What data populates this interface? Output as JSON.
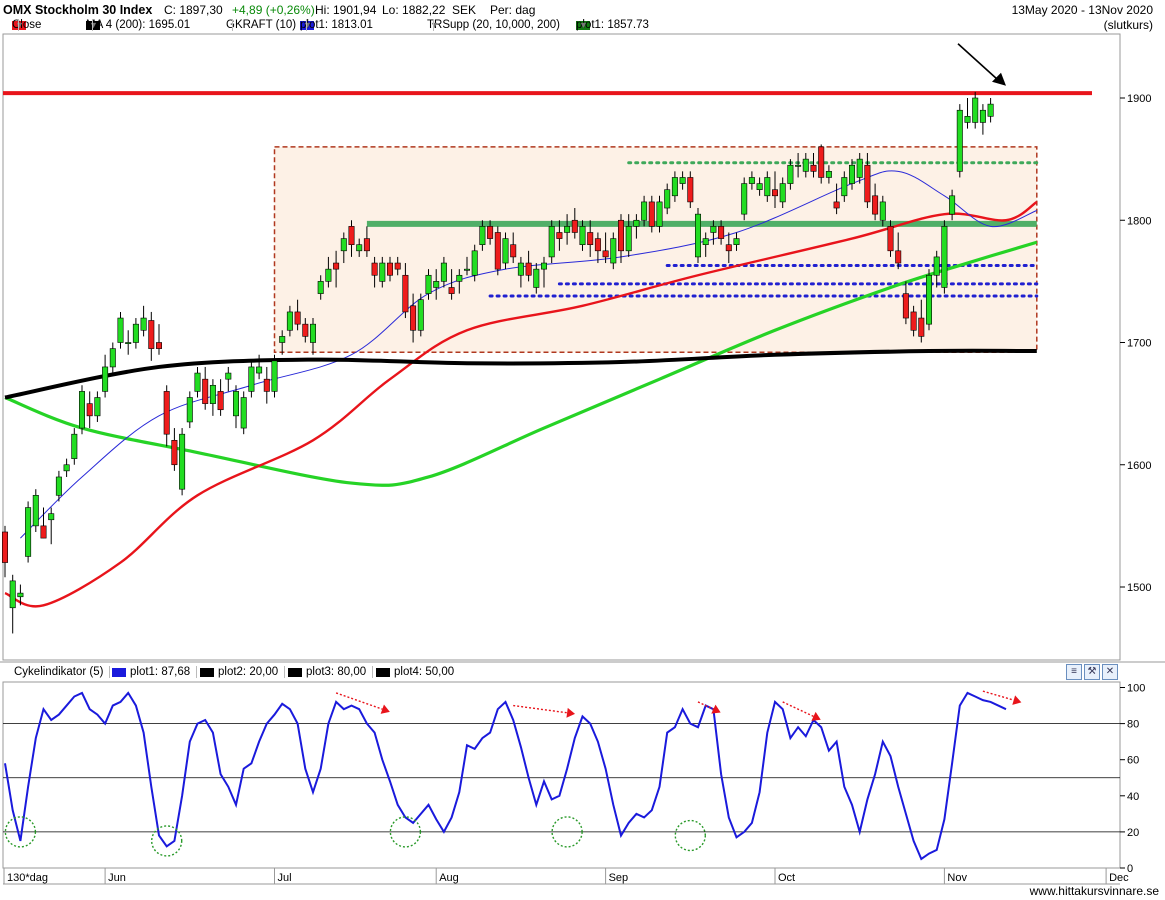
{
  "header": {
    "title": "OMX Stockholm 30 Index",
    "close": "C: 1897,30",
    "change": "+4,89 (+0,26%)",
    "high": "Hi: 1901,94",
    "low": "Lo: 1882,22",
    "currency": "SEK",
    "period": "Per: dag",
    "daterange": "13May 2020 - 13Nov 2020",
    "mode": "(slutkurs)"
  },
  "legend": [
    {
      "label": "Close",
      "color": "#e8141b",
      "dropdown": true
    },
    {
      "label": "MA 4 (200): 1695.01",
      "color": "#000000",
      "dropdown": true
    },
    {
      "label": "GKRAFT (10)",
      "color": "",
      "dropdown": false
    },
    {
      "label": "plot1: 1813.01",
      "color": "#1a1adc",
      "dropdown": true
    },
    {
      "label": "TRSupp (20, 10,000, 200)",
      "color": "",
      "dropdown": true
    },
    {
      "label": "plot1: 1857.73",
      "color": "#127a12",
      "dropdown": true
    }
  ],
  "indicator": {
    "name": "Cykelindikator (5)",
    "legend": [
      {
        "label": "plot1: 87,68",
        "color": "#1a1adc"
      },
      {
        "label": "plot2: 20,00",
        "color": "#000000"
      },
      {
        "label": "plot3: 80,00",
        "color": "#000000"
      },
      {
        "label": "plot4: 50,00",
        "color": "#000000"
      }
    ],
    "toolbar_icons": [
      "list-icon",
      "wrench-icon",
      "close-icon"
    ]
  },
  "footer": "www.hittakursvinnare.se",
  "chart_data": [
    {
      "type": "candlestick",
      "name": "price",
      "y_ticks": [
        1500,
        1600,
        1700,
        1800,
        1900
      ],
      "ylim": [
        1440,
        1945
      ],
      "x_labels": [
        {
          "label": "130*dag",
          "index": -1
        },
        {
          "label": "Jun",
          "index": 13
        },
        {
          "label": "Jul",
          "index": 35
        },
        {
          "label": "Aug",
          "index": 56
        },
        {
          "label": "Sep",
          "index": 78
        },
        {
          "label": "Oct",
          "index": 100
        },
        {
          "label": "Nov",
          "index": 122
        },
        {
          "label": "Dec",
          "index": 143
        }
      ],
      "candles_ohlc": [
        [
          1545,
          1550,
          1508,
          1520
        ],
        [
          1483,
          1510,
          1462,
          1505
        ],
        [
          1492,
          1502,
          1485,
          1495
        ],
        [
          1525,
          1570,
          1520,
          1565
        ],
        [
          1550,
          1580,
          1545,
          1575
        ],
        [
          1550,
          1565,
          1540,
          1540
        ],
        [
          1555,
          1565,
          1535,
          1560
        ],
        [
          1575,
          1595,
          1570,
          1590
        ],
        [
          1595,
          1605,
          1590,
          1600
        ],
        [
          1605,
          1630,
          1600,
          1625
        ],
        [
          1630,
          1665,
          1625,
          1660
        ],
        [
          1650,
          1660,
          1630,
          1640
        ],
        [
          1640,
          1660,
          1635,
          1655
        ],
        [
          1660,
          1690,
          1655,
          1680
        ],
        [
          1680,
          1700,
          1675,
          1695
        ],
        [
          1700,
          1725,
          1695,
          1720
        ],
        [
          1700,
          1710,
          1690,
          1700
        ],
        [
          1700,
          1720,
          1695,
          1715
        ],
        [
          1710,
          1730,
          1705,
          1720
        ],
        [
          1718,
          1725,
          1685,
          1695
        ],
        [
          1700,
          1715,
          1690,
          1695
        ],
        [
          1660,
          1665,
          1615,
          1625
        ],
        [
          1620,
          1630,
          1595,
          1600
        ],
        [
          1580,
          1630,
          1575,
          1625
        ],
        [
          1635,
          1660,
          1630,
          1655
        ],
        [
          1660,
          1680,
          1655,
          1675
        ],
        [
          1670,
          1680,
          1645,
          1650
        ],
        [
          1650,
          1670,
          1640,
          1665
        ],
        [
          1660,
          1670,
          1640,
          1645
        ],
        [
          1670,
          1680,
          1660,
          1675
        ],
        [
          1640,
          1665,
          1630,
          1660
        ],
        [
          1630,
          1660,
          1625,
          1655
        ],
        [
          1660,
          1685,
          1655,
          1680
        ],
        [
          1675,
          1690,
          1670,
          1680
        ],
        [
          1670,
          1680,
          1650,
          1660
        ],
        [
          1660,
          1690,
          1655,
          1685
        ],
        [
          1700,
          1710,
          1690,
          1705
        ],
        [
          1710,
          1730,
          1705,
          1725
        ],
        [
          1725,
          1735,
          1710,
          1715
        ],
        [
          1715,
          1720,
          1700,
          1705
        ],
        [
          1700,
          1720,
          1690,
          1715
        ],
        [
          1740,
          1755,
          1735,
          1750
        ],
        [
          1750,
          1770,
          1745,
          1760
        ],
        [
          1765,
          1775,
          1745,
          1760
        ],
        [
          1775,
          1790,
          1765,
          1785
        ],
        [
          1795,
          1800,
          1770,
          1780
        ],
        [
          1775,
          1785,
          1770,
          1780
        ],
        [
          1785,
          1795,
          1770,
          1775
        ],
        [
          1765,
          1770,
          1745,
          1755
        ],
        [
          1750,
          1770,
          1745,
          1765
        ],
        [
          1765,
          1770,
          1750,
          1755
        ],
        [
          1765,
          1770,
          1755,
          1760
        ],
        [
          1755,
          1765,
          1720,
          1725
        ],
        [
          1730,
          1740,
          1700,
          1710
        ],
        [
          1710,
          1740,
          1705,
          1735
        ],
        [
          1740,
          1760,
          1735,
          1755
        ],
        [
          1745,
          1760,
          1735,
          1750
        ],
        [
          1750,
          1770,
          1745,
          1765
        ],
        [
          1745,
          1760,
          1735,
          1740
        ],
        [
          1750,
          1760,
          1740,
          1755
        ],
        [
          1760,
          1770,
          1755,
          1760
        ],
        [
          1755,
          1780,
          1750,
          1775
        ],
        [
          1780,
          1800,
          1775,
          1795
        ],
        [
          1795,
          1800,
          1780,
          1785
        ],
        [
          1790,
          1795,
          1755,
          1760
        ],
        [
          1765,
          1790,
          1760,
          1785
        ],
        [
          1780,
          1790,
          1765,
          1770
        ],
        [
          1755,
          1770,
          1745,
          1765
        ],
        [
          1765,
          1775,
          1750,
          1755
        ],
        [
          1745,
          1765,
          1740,
          1760
        ],
        [
          1760,
          1770,
          1745,
          1765
        ],
        [
          1770,
          1800,
          1765,
          1795
        ],
        [
          1790,
          1800,
          1775,
          1785
        ],
        [
          1790,
          1805,
          1780,
          1795
        ],
        [
          1800,
          1810,
          1785,
          1790
        ],
        [
          1780,
          1800,
          1775,
          1795
        ],
        [
          1790,
          1800,
          1770,
          1780
        ],
        [
          1785,
          1790,
          1765,
          1775
        ],
        [
          1775,
          1790,
          1765,
          1770
        ],
        [
          1765,
          1790,
          1760,
          1785
        ],
        [
          1800,
          1805,
          1765,
          1775
        ],
        [
          1775,
          1805,
          1770,
          1795
        ],
        [
          1795,
          1805,
          1785,
          1800
        ],
        [
          1800,
          1820,
          1795,
          1815
        ],
        [
          1815,
          1820,
          1790,
          1795
        ],
        [
          1795,
          1820,
          1790,
          1815
        ],
        [
          1810,
          1830,
          1805,
          1825
        ],
        [
          1820,
          1840,
          1815,
          1835
        ],
        [
          1830,
          1840,
          1825,
          1835
        ],
        [
          1835,
          1840,
          1810,
          1815
        ],
        [
          1770,
          1810,
          1765,
          1805
        ],
        [
          1780,
          1790,
          1770,
          1785
        ],
        [
          1790,
          1800,
          1780,
          1795
        ],
        [
          1795,
          1800,
          1780,
          1785
        ],
        [
          1780,
          1790,
          1765,
          1775
        ],
        [
          1780,
          1790,
          1775,
          1785
        ],
        [
          1805,
          1835,
          1800,
          1830
        ],
        [
          1830,
          1840,
          1825,
          1835
        ],
        [
          1825,
          1835,
          1820,
          1830
        ],
        [
          1820,
          1840,
          1815,
          1835
        ],
        [
          1825,
          1840,
          1810,
          1820
        ],
        [
          1815,
          1835,
          1810,
          1830
        ],
        [
          1830,
          1850,
          1825,
          1845
        ],
        [
          1845,
          1855,
          1835,
          1845
        ],
        [
          1840,
          1855,
          1835,
          1850
        ],
        [
          1845,
          1855,
          1835,
          1840
        ],
        [
          1860,
          1862,
          1830,
          1835
        ],
        [
          1835,
          1845,
          1830,
          1840
        ],
        [
          1815,
          1830,
          1805,
          1810
        ],
        [
          1820,
          1840,
          1815,
          1835
        ],
        [
          1830,
          1850,
          1825,
          1845
        ],
        [
          1835,
          1855,
          1830,
          1850
        ],
        [
          1845,
          1855,
          1810,
          1815
        ],
        [
          1820,
          1830,
          1800,
          1805
        ],
        [
          1800,
          1820,
          1795,
          1815
        ],
        [
          1795,
          1800,
          1770,
          1775
        ],
        [
          1775,
          1790,
          1760,
          1765
        ],
        [
          1740,
          1750,
          1715,
          1720
        ],
        [
          1725,
          1730,
          1705,
          1710
        ],
        [
          1720,
          1735,
          1700,
          1705
        ],
        [
          1715,
          1760,
          1710,
          1755
        ],
        [
          1755,
          1775,
          1745,
          1770
        ],
        [
          1745,
          1800,
          1740,
          1795
        ],
        [
          1805,
          1825,
          1800,
          1820
        ],
        [
          1840,
          1895,
          1835,
          1890
        ],
        [
          1880,
          1900,
          1875,
          1885
        ],
        [
          1880,
          1905,
          1875,
          1900
        ],
        [
          1880,
          1895,
          1870,
          1890
        ],
        [
          1885,
          1900,
          1880,
          1895
        ]
      ],
      "lines": [
        {
          "name": "resistance-1904",
          "color": "#e8141b",
          "y": 1904
        },
        {
          "name": "support-1797",
          "color": "#3ea85a",
          "y": 1797
        }
      ],
      "ma200": [
        [
          0,
          1655
        ],
        [
          20,
          1680
        ],
        [
          40,
          1686
        ],
        [
          60,
          1683
        ],
        [
          80,
          1684
        ],
        [
          100,
          1690
        ],
        [
          120,
          1693
        ],
        [
          134,
          1693
        ]
      ],
      "ma_green": [
        [
          0,
          1655
        ],
        [
          10,
          1630
        ],
        [
          25,
          1610
        ],
        [
          45,
          1585
        ],
        [
          55,
          1590
        ],
        [
          70,
          1630
        ],
        [
          85,
          1670
        ],
        [
          100,
          1710
        ],
        [
          115,
          1745
        ],
        [
          125,
          1765
        ],
        [
          134,
          1782
        ]
      ],
      "ma_red": [
        [
          0,
          1495
        ],
        [
          5,
          1485
        ],
        [
          15,
          1520
        ],
        [
          25,
          1575
        ],
        [
          40,
          1620
        ],
        [
          50,
          1670
        ],
        [
          60,
          1710
        ],
        [
          75,
          1730
        ],
        [
          90,
          1755
        ],
        [
          110,
          1785
        ],
        [
          122,
          1805
        ],
        [
          130,
          1800
        ],
        [
          134,
          1815
        ]
      ],
      "ma_blue": [
        [
          2,
          1540
        ],
        [
          10,
          1590
        ],
        [
          20,
          1640
        ],
        [
          32,
          1665
        ],
        [
          45,
          1690
        ],
        [
          55,
          1740
        ],
        [
          65,
          1760
        ],
        [
          80,
          1770
        ],
        [
          95,
          1790
        ],
        [
          110,
          1830
        ],
        [
          116,
          1840
        ],
        [
          122,
          1820
        ],
        [
          128,
          1795
        ],
        [
          134,
          1808
        ]
      ],
      "box": {
        "x0": 35,
        "x1": 134,
        "y0": 1692,
        "y1": 1860
      },
      "dotted_levels": [
        {
          "y": 1847,
          "x0": 81,
          "x1": 134,
          "color": "#3ea85a"
        },
        {
          "y": 1763,
          "x0": 86,
          "x1": 134,
          "color": "#2020d0"
        },
        {
          "y": 1748,
          "x0": 72,
          "x1": 134,
          "color": "#2020d0"
        },
        {
          "y": 1738,
          "x0": 63,
          "x1": 134,
          "color": "#2020d0"
        }
      ],
      "arrow_target": {
        "x": 130,
        "y": 1910
      }
    },
    {
      "type": "line",
      "name": "Cykelindikator (5)",
      "y_ticks": [
        0,
        20,
        40,
        60,
        80,
        100
      ],
      "ylim": [
        0,
        100
      ],
      "reference_lines": [
        20,
        50,
        80
      ],
      "series": [
        {
          "name": "plot1",
          "color": "#1a1adc",
          "values": [
            58,
            32,
            15,
            45,
            72,
            88,
            82,
            85,
            90,
            95,
            97,
            88,
            85,
            80,
            90,
            92,
            97,
            90,
            75,
            45,
            18,
            12,
            15,
            40,
            70,
            80,
            82,
            75,
            52,
            45,
            35,
            55,
            58,
            70,
            80,
            85,
            91,
            88,
            80,
            55,
            42,
            55,
            80,
            92,
            88,
            90,
            88,
            80,
            75,
            60,
            48,
            35,
            28,
            25,
            30,
            35,
            27,
            20,
            28,
            42,
            68,
            66,
            72,
            75,
            88,
            92,
            82,
            67,
            50,
            35,
            48,
            38,
            40,
            55,
            72,
            84,
            80,
            70,
            55,
            35,
            18,
            25,
            30,
            28,
            32,
            45,
            75,
            78,
            88,
            80,
            78,
            90,
            88,
            52,
            28,
            17,
            20,
            25,
            42,
            75,
            92,
            88,
            72,
            78,
            73,
            82,
            78,
            65,
            70,
            45,
            35,
            20,
            38,
            52,
            70,
            62,
            45,
            30,
            15,
            5,
            8,
            10,
            27,
            58,
            90,
            97,
            95,
            93,
            92,
            90,
            88
          ]
        }
      ],
      "annotations": [
        {
          "type": "circle",
          "index": 2,
          "value": 20
        },
        {
          "type": "circle",
          "index": 21,
          "value": 15
        },
        {
          "type": "circle",
          "index": 52,
          "value": 20
        },
        {
          "type": "circle",
          "index": 73,
          "value": 20
        },
        {
          "type": "circle",
          "index": 89,
          "value": 18
        }
      ]
    }
  ]
}
